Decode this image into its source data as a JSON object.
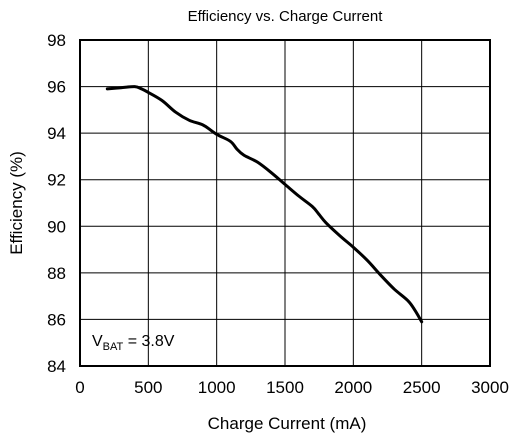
{
  "chart_data": {
    "type": "line",
    "title": "Efficiency vs. Charge Current",
    "xlabel": "Charge Current (mA)",
    "ylabel": "Efficiency (%)",
    "xlim": [
      0,
      3000
    ],
    "ylim": [
      84,
      98
    ],
    "xticks": [
      0,
      500,
      1000,
      1500,
      2000,
      2500,
      3000
    ],
    "yticks": [
      84,
      86,
      88,
      90,
      92,
      94,
      96,
      98
    ],
    "grid": true,
    "annotation": {
      "main": "V",
      "subscript": "BAT",
      "suffix": " = 3.8V",
      "position": "bottom-left"
    },
    "series": [
      {
        "color": "#000000",
        "x": [
          200,
          300,
          400,
          450,
          500,
          600,
          700,
          800,
          900,
          1000,
          1100,
          1150,
          1200,
          1300,
          1400,
          1500,
          1600,
          1700,
          1750,
          1800,
          1900,
          2000,
          2100,
          2200,
          2300,
          2400,
          2450,
          2500
        ],
        "y": [
          95.9,
          95.95,
          96.0,
          95.9,
          95.75,
          95.4,
          94.9,
          94.55,
          94.35,
          93.95,
          93.65,
          93.3,
          93.05,
          92.75,
          92.3,
          91.8,
          91.3,
          90.85,
          90.5,
          90.15,
          89.6,
          89.1,
          88.55,
          87.9,
          87.3,
          86.8,
          86.4,
          85.9
        ]
      }
    ]
  }
}
